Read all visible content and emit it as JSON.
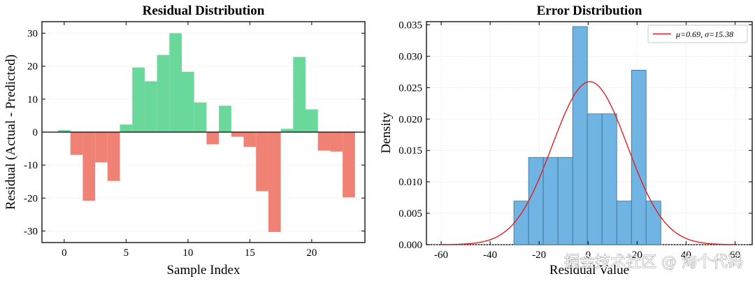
{
  "watermark": "掘金技术社区 @ 淘个代码",
  "colors": {
    "positive": "#6ad89a",
    "negative": "#ef8274",
    "hist_fill": "#6fb4e3",
    "hist_edge": "#3b6f96",
    "curve": "#e02020"
  },
  "chart_data": [
    {
      "type": "bar",
      "title": "Residual Distribution",
      "xlabel": "Sample Index",
      "ylabel": "Residual (Actual - Predicted)",
      "xlim": [
        -1.8,
        24.3
      ],
      "ylim": [
        -33.5,
        33.5
      ],
      "xticks": [
        0,
        5,
        10,
        15,
        20
      ],
      "yticks": [
        -30,
        -20,
        -10,
        0,
        10,
        20,
        30
      ],
      "x": [
        0,
        1,
        2,
        3,
        4,
        5,
        6,
        7,
        8,
        9,
        10,
        11,
        12,
        13,
        14,
        15,
        16,
        17,
        18,
        19,
        20,
        21,
        22,
        23
      ],
      "values": [
        0.6,
        -6.9,
        -20.8,
        -9.2,
        -14.8,
        2.3,
        19.6,
        15.4,
        23.4,
        30.0,
        18.3,
        9.0,
        -3.7,
        8.0,
        -1.4,
        -4.5,
        -17.9,
        -30.3,
        1.0,
        22.8,
        6.9,
        -5.6,
        -5.9,
        -19.8
      ],
      "baseline": 0
    },
    {
      "type": "histogram",
      "title": "Error Distribution",
      "xlabel": "Residual Value",
      "ylabel": "Density",
      "xlim": [
        -66,
        67
      ],
      "ylim": [
        0,
        0.0355
      ],
      "xticks": [
        -60,
        -40,
        -20,
        0,
        20,
        40,
        60
      ],
      "xtick_labels": [
        "-60",
        "-40",
        "-20",
        "0",
        "20",
        "40",
        "60"
      ],
      "yticks": [
        0,
        0.005,
        0.01,
        0.015,
        0.02,
        0.025,
        0.03,
        0.035
      ],
      "ytick_labels": [
        "0.000",
        "0.005",
        "0.010",
        "0.015",
        "0.020",
        "0.025",
        "0.030",
        "0.035"
      ],
      "bin_edges": [
        -30.3,
        -24.3,
        -18.3,
        -12.3,
        -6.3,
        -0.3,
        5.7,
        11.7,
        17.7,
        23.7,
        29.7
      ],
      "density": [
        0.00694,
        0.01389,
        0.01389,
        0.01389,
        0.03472,
        0.02083,
        0.02083,
        0.00694,
        0.02778,
        0.00694
      ],
      "normal_fit": {
        "mu": 0.69,
        "sigma": 15.38
      },
      "legend": {
        "label_mu": "μ=0.69",
        "label_sigma": "σ=15.38",
        "placement": "top-right"
      }
    }
  ]
}
